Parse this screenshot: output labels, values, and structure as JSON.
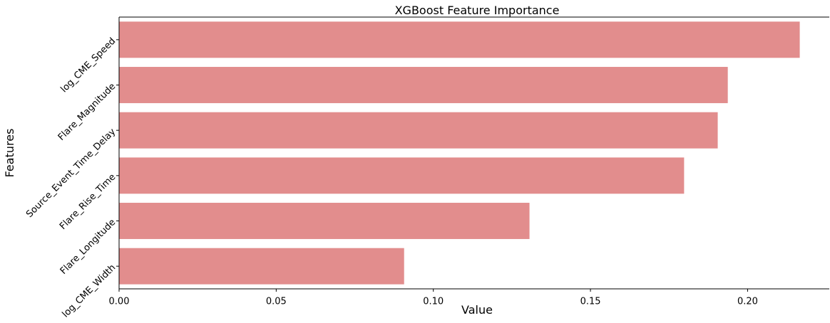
{
  "chart_data": {
    "type": "barh",
    "title": "XGBoost Feature Importance",
    "xlabel": "Value",
    "ylabel": "Features",
    "categories": [
      "log_CME_Speed",
      "Flare_Magnitude",
      "Source_Event_Time_Delay",
      "Flare_Rise_Time",
      "Flare_Longitude",
      "log_CME_Width"
    ],
    "values": [
      0.2166,
      0.1937,
      0.1905,
      0.1798,
      0.1306,
      0.0907
    ],
    "color": "#e28d8d",
    "xlim": [
      0,
      0.226
    ],
    "xticks": [
      {
        "value": 0,
        "label": "0.00"
      },
      {
        "value": 0.05,
        "label": "0.05"
      },
      {
        "value": 0.1,
        "label": "0.10"
      },
      {
        "value": 0.15,
        "label": "0.15"
      },
      {
        "value": 0.2,
        "label": "0.20"
      }
    ],
    "grid": false
  }
}
